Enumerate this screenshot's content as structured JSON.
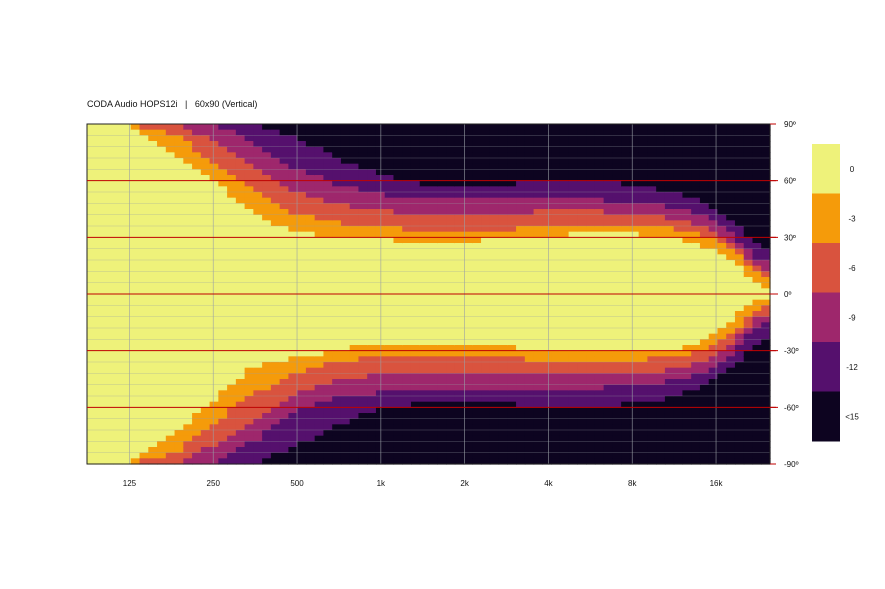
{
  "chart_data": {
    "type": "heatmap",
    "title": "CODA Audio HOPS12i   |   60x90 (Vertical)",
    "xlabel": "",
    "ylabel": "",
    "x_scale": "log",
    "x_range_hz": [
      88,
      25000
    ],
    "y_range_deg": [
      -90,
      90
    ],
    "x_ticks": [
      {
        "hz": 125,
        "label": "125"
      },
      {
        "hz": 250,
        "label": "250"
      },
      {
        "hz": 500,
        "label": "500"
      },
      {
        "hz": 1000,
        "label": "1k"
      },
      {
        "hz": 2000,
        "label": "2k"
      },
      {
        "hz": 4000,
        "label": "4k"
      },
      {
        "hz": 8000,
        "label": "8k"
      },
      {
        "hz": 16000,
        "label": "16k"
      }
    ],
    "y_ticks": [
      {
        "deg": 90,
        "label": "90º"
      },
      {
        "deg": 60,
        "label": "60º"
      },
      {
        "deg": 30,
        "label": "30º"
      },
      {
        "deg": 0,
        "label": "0º"
      },
      {
        "deg": -30,
        "label": "-30º"
      },
      {
        "deg": -60,
        "label": "-60º"
      },
      {
        "deg": -90,
        "label": "-90º"
      }
    ],
    "reference_lines_deg": [
      60,
      30,
      0,
      -30,
      -60
    ],
    "colorbar": [
      {
        "label": "0",
        "color": "#eef27a"
      },
      {
        "label": "-3",
        "color": "#f59b0a"
      },
      {
        "label": "-6",
        "color": "#d9533e"
      },
      {
        "label": "-9",
        "color": "#9e276c"
      },
      {
        "label": "-12",
        "color": "#55106d"
      },
      {
        "label": "<15",
        "color": "#0d0420"
      }
    ],
    "contours_deg": {
      "freq_hz": [
        88,
        125,
        180,
        250,
        350,
        500,
        700,
        1000,
        1400,
        2000,
        2800,
        4000,
        5600,
        8000,
        11000,
        14000,
        16000,
        18000,
        20000,
        22000,
        25000
      ],
      "upper_-3dB": [
        90,
        90,
        75,
        60,
        42,
        32,
        31,
        30,
        26,
        28,
        29,
        31,
        32,
        32,
        30,
        26,
        22,
        18,
        12,
        6,
        2
      ],
      "upper_-6dB": [
        90,
        90,
        85,
        70,
        55,
        42,
        38,
        35,
        34,
        34,
        34,
        36,
        36,
        36,
        35,
        32,
        28,
        24,
        18,
        12,
        8
      ],
      "upper_-9dB": [
        90,
        90,
        90,
        82,
        68,
        54,
        48,
        44,
        42,
        42,
        42,
        44,
        44,
        42,
        40,
        36,
        32,
        28,
        22,
        16,
        12
      ],
      "upper_-12dB": [
        90,
        90,
        90,
        90,
        80,
        66,
        58,
        53,
        50,
        50,
        50,
        50,
        50,
        48,
        46,
        42,
        38,
        32,
        26,
        20,
        16
      ],
      "upper_-15dB": [
        90,
        90,
        90,
        90,
        90,
        82,
        72,
        63,
        58,
        57,
        58,
        60,
        60,
        58,
        54,
        50,
        45,
        40,
        34,
        28,
        22
      ],
      "lower_-3dB": [
        -90,
        -90,
        -75,
        -56,
        -38,
        -34,
        -30,
        -26,
        -26,
        -27,
        -28,
        -30,
        -31,
        -31,
        -30,
        -25,
        -20,
        -14,
        -8,
        -4,
        -2
      ],
      "lower_-6dB": [
        -90,
        -90,
        -85,
        -68,
        -53,
        -42,
        -36,
        -33,
        -33,
        -33,
        -34,
        -35,
        -36,
        -35,
        -34,
        -31,
        -27,
        -22,
        -16,
        -10,
        -6
      ],
      "lower_-9dB": [
        -90,
        -90,
        -90,
        -80,
        -66,
        -52,
        -45,
        -43,
        -42,
        -42,
        -42,
        -43,
        -43,
        -42,
        -40,
        -36,
        -32,
        -26,
        -20,
        -14,
        -10
      ],
      "lower_-12dB": [
        -90,
        -90,
        -90,
        -90,
        -78,
        -62,
        -55,
        -52,
        -50,
        -50,
        -50,
        -50,
        -50,
        -48,
        -46,
        -42,
        -38,
        -32,
        -26,
        -18,
        -14
      ],
      "lower_-15dB": [
        -90,
        -90,
        -90,
        -90,
        -90,
        -80,
        -70,
        -60,
        -58,
        -57,
        -58,
        -60,
        -60,
        -58,
        -55,
        -50,
        -45,
        -40,
        -34,
        -28,
        -22
      ]
    }
  }
}
